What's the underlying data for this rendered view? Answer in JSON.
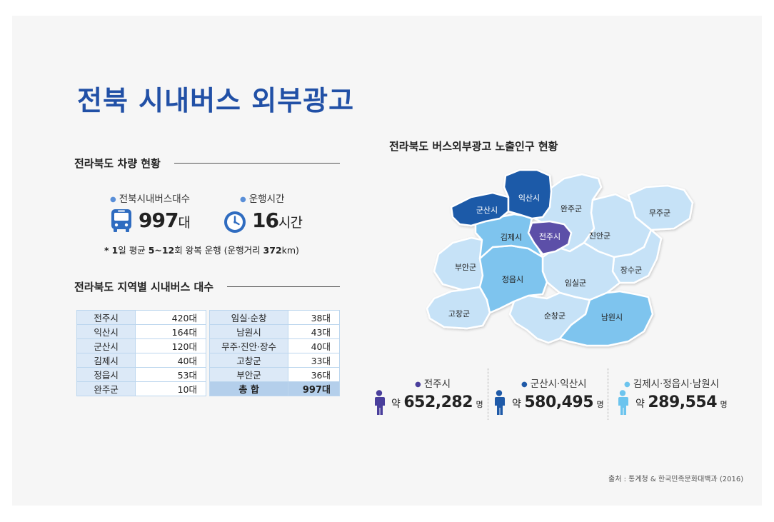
{
  "title": "전북 시내버스 외부광고",
  "vehicles": {
    "heading": "전라북도 차량 현황",
    "bus_label": "전북시내버스대수",
    "bus_value": "997",
    "bus_unit": "대",
    "hours_label": "운행시간",
    "hours_value": "16",
    "hours_unit": "시간",
    "note_parts": [
      "*",
      "1",
      "일 평균 ",
      "5~12",
      "회 왕복 운행 (운행거리 ",
      "372",
      "km)"
    ]
  },
  "regional": {
    "heading": "전라북도 지역별 시내버스 대수",
    "left": [
      {
        "name": "전주시",
        "value": "420대"
      },
      {
        "name": "익산시",
        "value": "164대"
      },
      {
        "name": "군산시",
        "value": "120대"
      },
      {
        "name": "김제시",
        "value": "40대"
      },
      {
        "name": "정읍시",
        "value": "53대"
      },
      {
        "name": "완주군",
        "value": "10대"
      }
    ],
    "right": [
      {
        "name": "임실·순창",
        "value": "38대"
      },
      {
        "name": "남원시",
        "value": "43대"
      },
      {
        "name": "무주·진안·장수",
        "value": "40대"
      },
      {
        "name": "고창군",
        "value": "33대"
      },
      {
        "name": "부안군",
        "value": "36대"
      }
    ],
    "total": {
      "name": "총 합",
      "value": "997대"
    }
  },
  "map": {
    "heading": "전라북도 버스외부광고 노출인구  현황",
    "regions": {
      "iksan": "익산시",
      "gunsan": "군산시",
      "wanju": "완주군",
      "muju": "무주군",
      "gimje": "김제시",
      "jeonju": "전주시",
      "jinan": "진안군",
      "buan": "부안군",
      "jangsu": "장수군",
      "jeongeup": "정읍시",
      "imsil": "임실군",
      "gochang": "고창군",
      "sunchang": "순창군",
      "namwon": "남원시"
    }
  },
  "population": [
    {
      "label": "전주시",
      "prefix": "약",
      "value": "652,282",
      "unit": "명",
      "color": "#4a3f9c"
    },
    {
      "label": "군산시·익산시",
      "prefix": "약",
      "value": "580,495",
      "unit": "명",
      "color": "#1f5aa8"
    },
    {
      "label": "김제시·정읍시·남원시",
      "prefix": "약",
      "value": "289,554",
      "unit": "명",
      "color": "#6cc4ee"
    }
  ],
  "colors": {
    "accent": "#2150a6",
    "jeonju": "#5b4fa8",
    "dark_blue": "#1f5aa8",
    "mid_blue": "#7ec4ee",
    "light_blue": "#c6e2f7"
  },
  "source": "출처 : 통계청 & 한국민족문화대백과 (2016)"
}
